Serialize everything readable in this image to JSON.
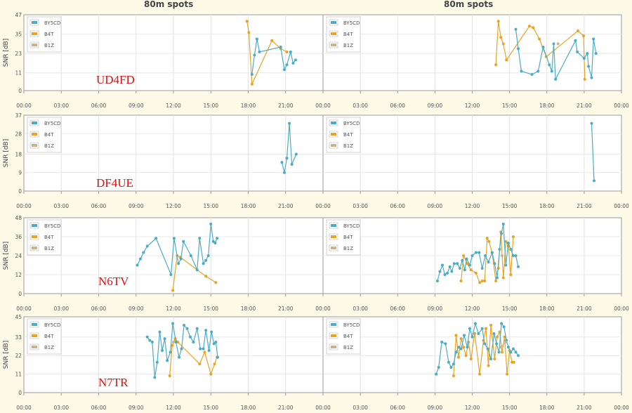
{
  "titles": [
    "80m spots",
    "80m spots"
  ],
  "chart_data": {
    "type": "line",
    "ylabel": "SNR [dB]",
    "x_ticks": [
      "00:00",
      "03:00",
      "06:00",
      "09:00",
      "12:00",
      "15:00",
      "18:00",
      "21:00",
      "00:00"
    ],
    "legend": [
      {
        "name": "BY5CD",
        "color": "#4bacc6"
      },
      {
        "name": "B4T",
        "color": "#e8a424"
      },
      {
        "name": "B1Z",
        "color": "#c8b48a"
      }
    ],
    "rows": [
      {
        "callsign": "UD4FD",
        "ymax": 47,
        "yticks": [
          0,
          11,
          23,
          35,
          47
        ],
        "left": {
          "BY5CD": [
            [
              18.3,
              10
            ],
            [
              18.5,
              22
            ],
            [
              18.7,
              32
            ],
            [
              18.9,
              24
            ],
            [
              20.6,
              27
            ],
            [
              20.9,
              13
            ],
            [
              21.1,
              16
            ],
            [
              21.4,
              24
            ],
            [
              21.6,
              17
            ],
            [
              21.8,
              19
            ]
          ],
          "B4T": [
            [
              17.9,
              43
            ],
            [
              18.05,
              36
            ],
            [
              18.3,
              4
            ],
            [
              19.9,
              31
            ],
            [
              20.6,
              26
            ],
            [
              21.1,
              24
            ]
          ],
          "B1Z": []
        },
        "right": {
          "BY5CD": [
            [
              15.5,
              38
            ],
            [
              15.7,
              26
            ],
            [
              15.95,
              12
            ],
            [
              16.8,
              10
            ],
            [
              17.3,
              12
            ],
            [
              17.7,
              27
            ],
            [
              18.2,
              16
            ],
            [
              18.4,
              12
            ],
            [
              18.55,
              29
            ],
            [
              18.7,
              7
            ],
            [
              20.3,
              31
            ],
            [
              20.45,
              24
            ],
            [
              21.0,
              20
            ],
            [
              21.25,
              23
            ],
            [
              21.35,
              15
            ],
            [
              21.6,
              8
            ],
            [
              21.75,
              32
            ],
            [
              21.95,
              23
            ]
          ],
          "B4T": [
            [
              13.9,
              16
            ],
            [
              14.1,
              43
            ],
            [
              14.3,
              33
            ],
            [
              14.5,
              29
            ],
            [
              14.75,
              19
            ],
            [
              16.6,
              40
            ],
            [
              16.9,
              39
            ],
            [
              17.4,
              32
            ],
            [
              17.95,
              21
            ],
            [
              20.5,
              37
            ],
            [
              20.95,
              34
            ],
            [
              21.05,
              7
            ]
          ],
          "B1Z": [
            [
              18.9,
              29
            ]
          ]
        }
      },
      {
        "callsign": "DF4UE",
        "ymax": 37,
        "yticks": [
          0,
          9,
          18,
          28,
          37
        ],
        "left": {
          "BY5CD": [
            [
              20.7,
              14
            ],
            [
              20.9,
              9
            ],
            [
              21.1,
              16
            ],
            [
              21.3,
              33
            ],
            [
              21.5,
              13
            ],
            [
              21.85,
              18
            ]
          ],
          "B4T": [],
          "B1Z": []
        },
        "right": {
          "BY5CD": [
            [
              21.6,
              33
            ],
            [
              21.8,
              5
            ]
          ],
          "B4T": [],
          "B1Z": []
        }
      },
      {
        "callsign": "N6TV",
        "ymax": 48,
        "yticks": [
          0,
          12,
          24,
          36,
          48
        ],
        "left": {
          "BY5CD": [
            [
              9.1,
              18
            ],
            [
              9.35,
              22
            ],
            [
              9.6,
              26
            ],
            [
              9.9,
              30
            ],
            [
              10.6,
              35
            ],
            [
              11.8,
              12
            ],
            [
              12.05,
              35
            ],
            [
              12.4,
              19
            ],
            [
              12.6,
              22
            ],
            [
              12.8,
              33
            ],
            [
              13.4,
              24
            ],
            [
              13.9,
              15
            ],
            [
              14.1,
              35
            ],
            [
              14.4,
              19
            ],
            [
              14.6,
              21
            ],
            [
              14.8,
              24
            ],
            [
              15.0,
              44
            ],
            [
              15.2,
              33
            ],
            [
              15.35,
              32
            ],
            [
              15.5,
              35
            ]
          ],
          "B4T": [
            [
              11.95,
              2
            ],
            [
              12.3,
              24
            ],
            [
              12.55,
              23
            ],
            [
              14.6,
              11
            ],
            [
              15.4,
              7
            ]
          ],
          "B1Z": []
        },
        "right": {
          "BY5CD": [
            [
              9.2,
              8
            ],
            [
              9.4,
              14
            ],
            [
              9.6,
              18
            ],
            [
              9.8,
              12
            ],
            [
              10.0,
              13
            ],
            [
              10.2,
              17
            ],
            [
              10.35,
              14
            ],
            [
              10.55,
              19
            ],
            [
              10.8,
              19
            ],
            [
              11.0,
              16
            ],
            [
              11.2,
              21
            ],
            [
              11.4,
              15
            ],
            [
              11.55,
              22
            ],
            [
              11.8,
              18
            ],
            [
              12.0,
              24
            ],
            [
              12.3,
              26
            ],
            [
              12.55,
              26
            ],
            [
              12.8,
              16
            ],
            [
              13.05,
              24
            ],
            [
              13.3,
              20
            ],
            [
              13.6,
              26
            ],
            [
              13.8,
              19
            ],
            [
              14.0,
              10
            ],
            [
              14.2,
              28
            ],
            [
              14.35,
              38
            ],
            [
              14.5,
              44
            ],
            [
              14.7,
              18
            ],
            [
              14.9,
              32
            ],
            [
              15.1,
              28
            ],
            [
              15.3,
              24
            ],
            [
              15.5,
              24
            ],
            [
              15.7,
              17
            ]
          ],
          "B4T": [
            [
              11.1,
              8
            ],
            [
              11.3,
              24
            ],
            [
              11.6,
              19
            ],
            [
              11.9,
              15
            ],
            [
              12.3,
              13
            ],
            [
              12.6,
              7
            ],
            [
              12.8,
              8
            ],
            [
              13.0,
              8
            ],
            [
              13.2,
              35
            ],
            [
              13.35,
              33
            ],
            [
              13.6,
              26
            ],
            [
              13.9,
              8
            ],
            [
              14.1,
              16
            ],
            [
              14.3,
              39
            ],
            [
              14.5,
              10
            ],
            [
              14.7,
              33
            ],
            [
              14.9,
              30
            ],
            [
              15.1,
              12
            ],
            [
              15.3,
              36
            ]
          ],
          "B1Z": [
            [
              14.4,
              24
            ]
          ]
        }
      },
      {
        "callsign": "N7TR",
        "ymax": 45,
        "yticks": [
          0,
          11,
          22,
          33,
          45
        ],
        "left": {
          "BY5CD": [
            [
              9.9,
              33
            ],
            [
              10.1,
              31
            ],
            [
              10.3,
              30
            ],
            [
              10.5,
              9
            ],
            [
              10.7,
              18
            ],
            [
              10.9,
              36
            ],
            [
              11.1,
              25
            ],
            [
              11.3,
              32
            ],
            [
              11.5,
              19
            ],
            [
              11.75,
              24
            ],
            [
              11.95,
              41
            ],
            [
              12.2,
              30
            ],
            [
              12.45,
              21
            ],
            [
              12.65,
              26
            ],
            [
              12.85,
              40
            ],
            [
              13.1,
              38
            ],
            [
              13.35,
              33
            ],
            [
              13.6,
              30
            ],
            [
              13.9,
              38
            ],
            [
              14.15,
              26
            ],
            [
              14.4,
              26
            ],
            [
              14.6,
              37
            ],
            [
              14.85,
              25
            ],
            [
              15.05,
              36
            ],
            [
              15.25,
              29
            ],
            [
              15.4,
              30
            ],
            [
              15.55,
              21
            ]
          ],
          "B4T": [
            [
              11.7,
              10
            ],
            [
              11.9,
              28
            ],
            [
              12.15,
              32
            ],
            [
              12.35,
              30
            ],
            [
              14.1,
              17
            ],
            [
              14.5,
              24
            ],
            [
              15.0,
              11
            ],
            [
              15.3,
              17
            ],
            [
              15.5,
              21
            ]
          ],
          "B1Z": [
            [
              12.0,
              30
            ]
          ]
        },
        "right": {
          "BY5CD": [
            [
              9.1,
              11
            ],
            [
              9.3,
              15
            ],
            [
              9.55,
              30
            ],
            [
              9.85,
              29
            ],
            [
              10.1,
              18
            ],
            [
              10.3,
              15
            ],
            [
              10.5,
              17
            ],
            [
              10.7,
              24
            ],
            [
              10.9,
              27
            ],
            [
              11.1,
              26
            ],
            [
              11.35,
              34
            ],
            [
              11.6,
              27
            ],
            [
              11.8,
              38
            ],
            [
              12.0,
              33
            ],
            [
              12.25,
              41
            ],
            [
              12.5,
              35
            ],
            [
              12.8,
              38
            ],
            [
              13.0,
              29
            ],
            [
              13.25,
              26
            ],
            [
              13.5,
              20
            ],
            [
              13.75,
              35
            ],
            [
              13.95,
              29
            ],
            [
              14.15,
              24
            ],
            [
              14.35,
              41
            ],
            [
              14.55,
              39
            ],
            [
              14.75,
              31
            ],
            [
              14.9,
              27
            ],
            [
              15.1,
              24
            ],
            [
              15.3,
              26
            ],
            [
              15.5,
              24
            ],
            [
              15.7,
              22
            ]
          ],
          "B4T": [
            [
              10.5,
              10
            ],
            [
              10.7,
              34
            ],
            [
              10.9,
              21
            ],
            [
              11.1,
              32
            ],
            [
              11.3,
              27
            ],
            [
              11.5,
              22
            ],
            [
              11.7,
              30
            ],
            [
              11.9,
              20
            ],
            [
              12.2,
              35
            ],
            [
              12.6,
              11
            ],
            [
              12.9,
              31
            ],
            [
              13.1,
              38
            ],
            [
              13.3,
              16
            ],
            [
              13.5,
              40
            ],
            [
              13.8,
              20
            ],
            [
              14.0,
              33
            ],
            [
              14.2,
              36
            ],
            [
              14.4,
              24
            ],
            [
              14.6,
              33
            ],
            [
              14.8,
              11
            ],
            [
              15.0,
              25
            ],
            [
              15.2,
              18
            ],
            [
              15.35,
              18
            ]
          ],
          "B1Z": [
            [
              14.3,
              27
            ],
            [
              14.7,
              30
            ]
          ]
        }
      }
    ]
  }
}
